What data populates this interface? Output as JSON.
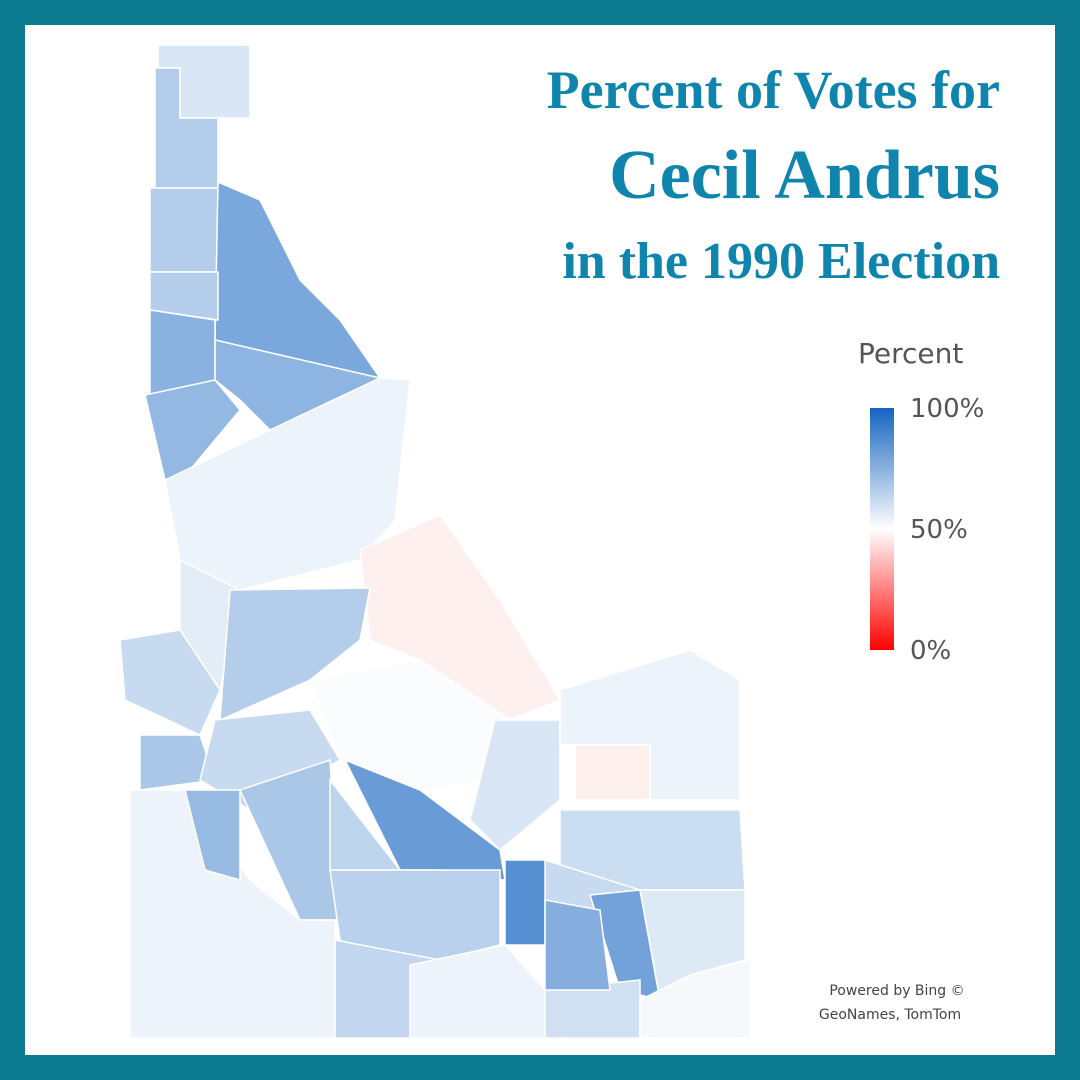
{
  "title": {
    "line1": "Percent of Votes for",
    "line2": "Cecil Andrus",
    "line3": "in the 1990 Election"
  },
  "legend": {
    "title": "Percent",
    "range": [
      0,
      100
    ],
    "ticks": [
      {
        "value": 100,
        "label": "100%"
      },
      {
        "value": 50,
        "label": "50%"
      },
      {
        "value": 0,
        "label": "0%"
      }
    ],
    "colors": [
      "#ff0000",
      "#ffffff",
      "#1464c0"
    ]
  },
  "map": {
    "county_values": [
      58,
      66,
      66,
      78,
      66,
      75,
      74,
      73,
      54,
      56,
      47,
      62,
      66,
      51,
      68,
      62,
      68,
      54,
      72,
      82,
      64,
      58,
      54,
      47,
      61,
      62,
      80,
      86,
      65,
      63,
      54,
      60,
      57,
      52,
      76
    ]
  },
  "attribution": {
    "line1": "Powered by Bing ©",
    "line2": "GeoNames, TomTom"
  }
}
